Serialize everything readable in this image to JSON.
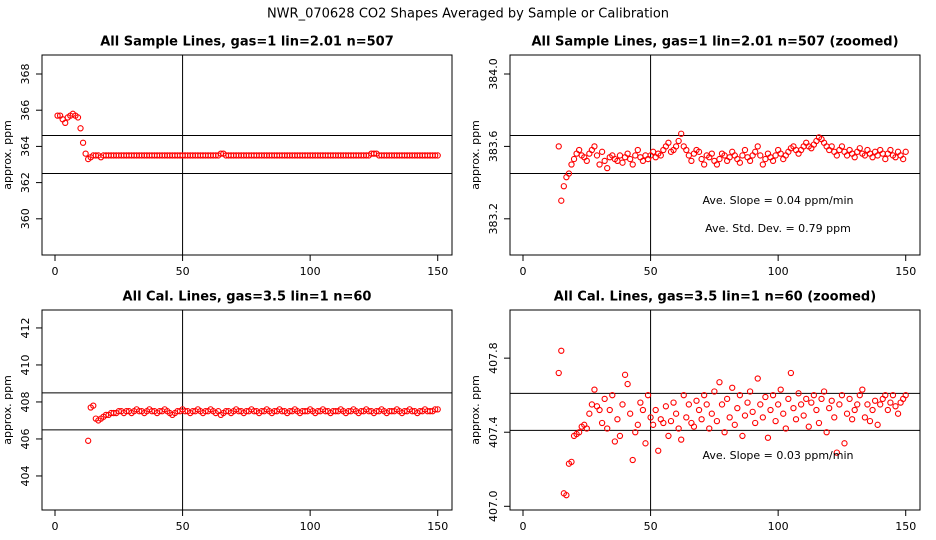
{
  "title": "NWR_070628  CO2 Shapes Averaged by Sample or Calibration",
  "chart_data": [
    {
      "type": "scatter",
      "title": "All Sample Lines, gas=1 lin=2.01 n=507",
      "ylabel": "approx. ppm",
      "color": "#ff0000",
      "xlim": [
        -5.1,
        155.6
      ],
      "xticks": [
        0,
        50,
        100,
        150
      ],
      "ylim": [
        358.0,
        369.05
      ],
      "yticks": [
        360,
        362,
        364,
        366,
        368
      ],
      "hlines": [
        364.6,
        362.5
      ],
      "vlines": [
        50
      ],
      "x": [
        1,
        2,
        3,
        4,
        5,
        6,
        7,
        8,
        9,
        10,
        11,
        12,
        13,
        14,
        15,
        16,
        17,
        18,
        19,
        20,
        21,
        22,
        23,
        24,
        25,
        26,
        27,
        28,
        29,
        30,
        31,
        32,
        33,
        34,
        35,
        36,
        37,
        38,
        39,
        40,
        41,
        42,
        43,
        44,
        45,
        46,
        47,
        48,
        49,
        50,
        51,
        52,
        53,
        54,
        55,
        56,
        57,
        58,
        59,
        60,
        61,
        62,
        63,
        64,
        65,
        66,
        67,
        68,
        69,
        70,
        71,
        72,
        73,
        74,
        75,
        76,
        77,
        78,
        79,
        80,
        81,
        82,
        83,
        84,
        85,
        86,
        87,
        88,
        89,
        90,
        91,
        92,
        93,
        94,
        95,
        96,
        97,
        98,
        99,
        100,
        101,
        102,
        103,
        104,
        105,
        106,
        107,
        108,
        109,
        110,
        111,
        112,
        113,
        114,
        115,
        116,
        117,
        118,
        119,
        120,
        121,
        122,
        123,
        124,
        125,
        126,
        127,
        128,
        129,
        130,
        131,
        132,
        133,
        134,
        135,
        136,
        137,
        138,
        139,
        140,
        141,
        142,
        143,
        144,
        145,
        146,
        147,
        148,
        149,
        150
      ],
      "values": [
        365.7,
        365.7,
        365.5,
        365.3,
        365.6,
        365.7,
        365.8,
        365.7,
        365.6,
        365.0,
        364.2,
        363.6,
        363.3,
        363.4,
        363.5,
        363.5,
        363.5,
        363.4,
        363.5,
        363.5,
        363.5,
        363.5,
        363.5,
        363.5,
        363.5,
        363.5,
        363.5,
        363.5,
        363.5,
        363.5,
        363.5,
        363.5,
        363.5,
        363.5,
        363.5,
        363.5,
        363.5,
        363.5,
        363.5,
        363.5,
        363.5,
        363.5,
        363.5,
        363.5,
        363.5,
        363.5,
        363.5,
        363.5,
        363.5,
        363.5,
        363.5,
        363.5,
        363.5,
        363.5,
        363.5,
        363.5,
        363.5,
        363.5,
        363.5,
        363.5,
        363.5,
        363.5,
        363.5,
        363.5,
        363.6,
        363.6,
        363.5,
        363.5,
        363.5,
        363.5,
        363.5,
        363.5,
        363.5,
        363.5,
        363.5,
        363.5,
        363.5,
        363.5,
        363.5,
        363.5,
        363.5,
        363.5,
        363.5,
        363.5,
        363.5,
        363.5,
        363.5,
        363.5,
        363.5,
        363.5,
        363.5,
        363.5,
        363.5,
        363.5,
        363.5,
        363.5,
        363.5,
        363.5,
        363.5,
        363.5,
        363.5,
        363.5,
        363.5,
        363.5,
        363.5,
        363.5,
        363.5,
        363.5,
        363.5,
        363.5,
        363.5,
        363.5,
        363.5,
        363.5,
        363.5,
        363.5,
        363.5,
        363.5,
        363.5,
        363.5,
        363.5,
        363.5,
        363.5,
        363.6,
        363.6,
        363.6,
        363.5,
        363.5,
        363.5,
        363.5,
        363.5,
        363.5,
        363.5,
        363.5,
        363.5,
        363.5,
        363.5,
        363.5,
        363.5,
        363.5,
        363.5,
        363.5,
        363.5,
        363.5,
        363.5,
        363.5,
        363.5,
        363.5,
        363.5,
        363.5
      ]
    },
    {
      "type": "scatter",
      "title": "All Sample Lines, gas=1 lin=2.01 n=507 (zoomed)",
      "ylabel": "approx. ppm",
      "color": "#ff0000",
      "xlim": [
        -5.1,
        155.6
      ],
      "xticks": [
        0,
        50,
        100,
        150
      ],
      "ylim": [
        383.0,
        384.105
      ],
      "yticks": [
        {
          "value": 383.2,
          "label": "383.2"
        },
        {
          "value": 383.6,
          "label": "383.6"
        },
        {
          "value": 384.0,
          "label": "384.0"
        }
      ],
      "hlines": [
        383.66,
        383.45
      ],
      "vlines": [
        50
      ],
      "annotations": [
        "Ave. Slope =  0.04  ppm/min",
        "Ave. Std. Dev. =  0.79  ppm"
      ],
      "x": [
        14,
        15,
        16,
        17,
        18,
        19,
        20,
        21,
        22,
        23,
        24,
        25,
        26,
        27,
        28,
        29,
        30,
        31,
        32,
        33,
        34,
        35,
        36,
        37,
        38,
        39,
        40,
        41,
        42,
        43,
        44,
        45,
        46,
        47,
        48,
        49,
        50,
        51,
        52,
        53,
        54,
        55,
        56,
        57,
        58,
        59,
        60,
        61,
        62,
        63,
        64,
        65,
        66,
        67,
        68,
        69,
        70,
        71,
        72,
        73,
        74,
        75,
        76,
        77,
        78,
        79,
        80,
        81,
        82,
        83,
        84,
        85,
        86,
        87,
        88,
        89,
        90,
        91,
        92,
        93,
        94,
        95,
        96,
        97,
        98,
        99,
        100,
        101,
        102,
        103,
        104,
        105,
        106,
        107,
        108,
        109,
        110,
        111,
        112,
        113,
        114,
        115,
        116,
        117,
        118,
        119,
        120,
        121,
        122,
        123,
        124,
        125,
        126,
        127,
        128,
        129,
        130,
        131,
        132,
        133,
        134,
        135,
        136,
        137,
        138,
        139,
        140,
        141,
        142,
        143,
        144,
        145,
        146,
        147,
        148,
        149,
        150
      ],
      "values": [
        383.6,
        383.3,
        383.38,
        383.43,
        383.45,
        383.5,
        383.53,
        383.56,
        383.58,
        383.55,
        383.54,
        383.52,
        383.56,
        383.58,
        383.6,
        383.55,
        383.5,
        383.57,
        383.52,
        383.48,
        383.54,
        383.55,
        383.53,
        383.52,
        383.55,
        383.51,
        383.54,
        383.56,
        383.53,
        383.5,
        383.55,
        383.58,
        383.54,
        383.52,
        383.55,
        383.53,
        383.55,
        383.57,
        383.54,
        383.56,
        383.55,
        383.58,
        383.6,
        383.62,
        383.57,
        383.58,
        383.6,
        383.63,
        383.67,
        383.6,
        383.58,
        383.55,
        383.52,
        383.56,
        383.58,
        383.57,
        383.53,
        383.5,
        383.55,
        383.54,
        383.56,
        383.52,
        383.5,
        383.53,
        383.56,
        383.55,
        383.52,
        383.54,
        383.57,
        383.55,
        383.53,
        383.51,
        383.55,
        383.58,
        383.54,
        383.52,
        383.55,
        383.57,
        383.6,
        383.55,
        383.5,
        383.53,
        383.56,
        383.54,
        383.52,
        383.55,
        383.58,
        383.56,
        383.53,
        383.55,
        383.57,
        383.59,
        383.6,
        383.58,
        383.56,
        383.58,
        383.6,
        383.62,
        383.6,
        383.59,
        383.61,
        383.63,
        383.65,
        383.64,
        383.62,
        383.6,
        383.58,
        383.6,
        383.57,
        383.55,
        383.58,
        383.6,
        383.57,
        383.55,
        383.58,
        383.56,
        383.54,
        383.57,
        383.59,
        383.56,
        383.55,
        383.58,
        383.56,
        383.54,
        383.57,
        383.55,
        383.58,
        383.56,
        383.53,
        383.56,
        383.58,
        383.55,
        383.54,
        383.57,
        383.55,
        383.53,
        383.57
      ]
    },
    {
      "type": "scatter",
      "title": "All Cal. Lines, gas=3.5 lin=1 n=60",
      "ylabel": "approx. ppm",
      "color": "#ff0000",
      "xlim": [
        -5.1,
        155.6
      ],
      "xticks": [
        0,
        50,
        100,
        150
      ],
      "ylim": [
        402.16,
        412.97
      ],
      "yticks": [
        404,
        406,
        408,
        410,
        412
      ],
      "hlines": [
        408.49,
        406.49
      ],
      "vlines": [
        50
      ],
      "x": [
        13,
        14,
        15,
        16,
        17,
        18,
        19,
        20,
        21,
        22,
        23,
        24,
        25,
        26,
        27,
        28,
        29,
        30,
        31,
        32,
        33,
        34,
        35,
        36,
        37,
        38,
        39,
        40,
        41,
        42,
        43,
        44,
        45,
        46,
        47,
        48,
        49,
        50,
        51,
        52,
        53,
        54,
        55,
        56,
        57,
        58,
        59,
        60,
        61,
        62,
        63,
        64,
        65,
        66,
        67,
        68,
        69,
        70,
        71,
        72,
        73,
        74,
        75,
        76,
        77,
        78,
        79,
        80,
        81,
        82,
        83,
        84,
        85,
        86,
        87,
        88,
        89,
        90,
        91,
        92,
        93,
        94,
        95,
        96,
        97,
        98,
        99,
        100,
        101,
        102,
        103,
        104,
        105,
        106,
        107,
        108,
        109,
        110,
        111,
        112,
        113,
        114,
        115,
        116,
        117,
        118,
        119,
        120,
        121,
        122,
        123,
        124,
        125,
        126,
        127,
        128,
        129,
        130,
        131,
        132,
        133,
        134,
        135,
        136,
        137,
        138,
        139,
        140,
        141,
        142,
        143,
        144,
        145,
        146,
        147,
        148,
        149,
        150
      ],
      "values": [
        405.9,
        407.7,
        407.8,
        407.1,
        407.0,
        407.1,
        407.2,
        407.3,
        407.3,
        407.4,
        407.4,
        407.4,
        407.5,
        407.5,
        407.4,
        407.5,
        407.5,
        407.4,
        407.5,
        407.6,
        407.5,
        407.5,
        407.4,
        407.5,
        407.6,
        407.5,
        407.5,
        407.4,
        407.5,
        407.5,
        407.6,
        407.5,
        407.4,
        407.3,
        407.4,
        407.5,
        407.5,
        407.6,
        407.5,
        407.5,
        407.4,
        407.5,
        407.5,
        407.6,
        407.5,
        407.4,
        407.5,
        407.5,
        407.6,
        407.5,
        407.4,
        407.5,
        407.3,
        407.4,
        407.5,
        407.5,
        407.4,
        407.5,
        407.6,
        407.5,
        407.5,
        407.4,
        407.5,
        407.5,
        407.6,
        407.5,
        407.5,
        407.4,
        407.5,
        407.5,
        407.6,
        407.5,
        407.4,
        407.5,
        407.5,
        407.6,
        407.5,
        407.5,
        407.4,
        407.5,
        407.5,
        407.6,
        407.5,
        407.4,
        407.5,
        407.5,
        407.5,
        407.6,
        407.5,
        407.4,
        407.5,
        407.5,
        407.6,
        407.5,
        407.5,
        407.4,
        407.5,
        407.5,
        407.5,
        407.6,
        407.5,
        407.4,
        407.5,
        407.5,
        407.6,
        407.5,
        407.4,
        407.5,
        407.5,
        407.6,
        407.5,
        407.5,
        407.4,
        407.5,
        407.5,
        407.6,
        407.5,
        407.4,
        407.5,
        407.5,
        407.5,
        407.6,
        407.5,
        407.4,
        407.5,
        407.5,
        407.6,
        407.5,
        407.5,
        407.4,
        407.5,
        407.5,
        407.6,
        407.5,
        407.5,
        407.5,
        407.6,
        407.6
      ]
    },
    {
      "type": "scatter",
      "title": "All Cal. Lines, gas=3.5 lin=1 n=60 (zoomed)",
      "ylabel": "approx. ppm",
      "color": "#ff0000",
      "xlim": [
        -5.1,
        155.6
      ],
      "xticks": [
        0,
        50,
        100,
        150
      ],
      "ylim": [
        406.98,
        408.06
      ],
      "yticks": [
        {
          "value": 407.0,
          "label": "407.0"
        },
        407.4,
        407.8
      ],
      "hlines": [
        407.61,
        407.41
      ],
      "vlines": [
        50
      ],
      "annotations": [
        "Ave. Slope =  0.03  ppm/min"
      ],
      "x": [
        14,
        15,
        16,
        17,
        18,
        19,
        20,
        21,
        22,
        23,
        24,
        25,
        26,
        27,
        28,
        29,
        30,
        31,
        32,
        33,
        34,
        35,
        36,
        37,
        38,
        39,
        40,
        41,
        42,
        43,
        44,
        45,
        46,
        47,
        48,
        49,
        50,
        51,
        52,
        53,
        54,
        55,
        56,
        57,
        58,
        59,
        60,
        61,
        62,
        63,
        64,
        65,
        66,
        67,
        68,
        69,
        70,
        71,
        72,
        73,
        74,
        75,
        76,
        77,
        78,
        79,
        80,
        81,
        82,
        83,
        84,
        85,
        86,
        87,
        88,
        89,
        90,
        91,
        92,
        93,
        94,
        95,
        96,
        97,
        98,
        99,
        100,
        101,
        102,
        103,
        104,
        105,
        106,
        107,
        108,
        109,
        110,
        111,
        112,
        113,
        114,
        115,
        116,
        117,
        118,
        119,
        120,
        121,
        122,
        123,
        124,
        125,
        126,
        127,
        128,
        129,
        130,
        131,
        132,
        133,
        134,
        135,
        136,
        137,
        138,
        139,
        140,
        141,
        142,
        143,
        144,
        145,
        146,
        147,
        148,
        149,
        150
      ],
      "values": [
        407.72,
        407.84,
        407.07,
        407.06,
        407.23,
        407.24,
        407.38,
        407.39,
        407.4,
        407.43,
        407.44,
        407.42,
        407.5,
        407.55,
        407.63,
        407.54,
        407.52,
        407.45,
        407.58,
        407.42,
        407.52,
        407.6,
        407.35,
        407.47,
        407.38,
        407.55,
        407.71,
        407.66,
        407.5,
        407.25,
        407.4,
        407.44,
        407.56,
        407.52,
        407.34,
        407.6,
        407.48,
        407.44,
        407.52,
        407.3,
        407.47,
        407.45,
        407.54,
        407.38,
        407.46,
        407.56,
        407.5,
        407.42,
        407.36,
        407.6,
        407.48,
        407.55,
        407.45,
        407.43,
        407.57,
        407.52,
        407.47,
        407.6,
        407.55,
        407.42,
        407.5,
        407.62,
        407.46,
        407.67,
        407.55,
        407.4,
        407.58,
        407.48,
        407.64,
        407.44,
        407.53,
        407.6,
        407.38,
        407.49,
        407.56,
        407.62,
        407.51,
        407.45,
        407.69,
        407.55,
        407.48,
        407.59,
        407.37,
        407.52,
        407.6,
        407.46,
        407.55,
        407.63,
        407.5,
        407.42,
        407.58,
        407.72,
        407.53,
        407.47,
        407.61,
        407.55,
        407.49,
        407.58,
        407.43,
        407.56,
        407.6,
        407.52,
        407.45,
        407.58,
        407.62,
        407.4,
        407.53,
        407.57,
        407.48,
        407.29,
        407.55,
        407.6,
        407.34,
        407.5,
        407.58,
        407.47,
        407.52,
        407.55,
        407.6,
        407.63,
        407.48,
        407.55,
        407.46,
        407.52,
        407.57,
        407.44,
        407.55,
        407.58,
        407.6,
        407.52,
        407.56,
        407.6,
        407.54,
        407.5,
        407.56,
        407.58,
        407.6
      ]
    }
  ]
}
